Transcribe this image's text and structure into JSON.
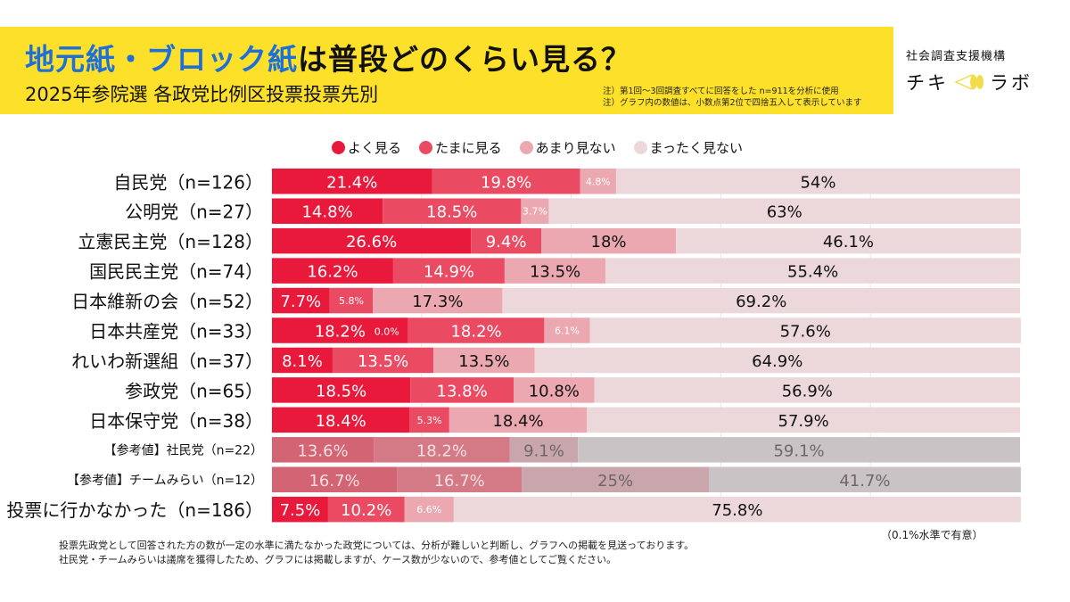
{
  "header": {
    "title_highlight": "地元紙・ブロック紙",
    "title_rest": "は普段どのくらい見る？",
    "subtitle": "2025年参院選 各政党比例区投票投票先別",
    "notes": [
      "注）第1回〜3回調査すべてに回答をした n=911を分析に使用",
      "注）グラフ内の数値は、小数点第2位で四捨五入して表示しています"
    ],
    "brand_org": "社会調査支援機構",
    "brand_name_left": "チキ",
    "brand_name_right": "ラボ"
  },
  "colors": {
    "header_bg": "#fde02a",
    "title_highlight": "#1f6fd8",
    "often": "#e8193a",
    "sometimes": "#ea4b62",
    "rarely": "#eba8b1",
    "never": "#ecd8db",
    "ref_often": "#d26474",
    "ref_sometimes": "#d47a87",
    "ref_rarely": "#c9a6ac",
    "ref_never": "#cac3c5"
  },
  "chart_data": {
    "type": "bar",
    "orientation": "horizontal",
    "stacked": true,
    "normalized_percent": true,
    "title": "地元紙・ブロック紙は普段どのくらい見る？",
    "subtitle": "2025年参院選 各政党比例区投票投票先別",
    "xlim": [
      0,
      100
    ],
    "grid": true,
    "legend_position": "top",
    "categories": [
      "自民党（n=126）",
      "公明党（n=27）",
      "立憲民主党（n=128）",
      "国民民主党（n=74）",
      "日本維新の会（n=52）",
      "日本共産党（n=33）",
      "れいわ新選組（n=37）",
      "参政党（n=65）",
      "日本保守党（n=38）",
      "【参考値】社民党（n=22）",
      "【参考値】チームみらい（n=12）",
      "投票に行かなかった（n=186）"
    ],
    "reference_rows": [
      false,
      false,
      false,
      false,
      false,
      false,
      false,
      false,
      false,
      true,
      true,
      false
    ],
    "series": [
      {
        "name": "よく見る",
        "values": [
          21.4,
          14.8,
          26.6,
          16.2,
          7.7,
          18.2,
          8.1,
          18.5,
          18.4,
          13.6,
          16.7,
          7.5
        ],
        "labels": [
          "21.4%",
          "14.8%",
          "26.6%",
          "16.2%",
          "7.7%",
          "18.2%",
          "8.1%",
          "18.5%",
          "18.4%",
          "13.6%",
          "16.7%",
          "7.5%"
        ]
      },
      {
        "name": "たまに見る",
        "values": [
          19.8,
          18.5,
          9.4,
          14.9,
          5.8,
          18.2,
          13.5,
          13.8,
          5.3,
          18.2,
          16.7,
          10.2
        ],
        "labels": [
          "19.8%",
          "18.5%",
          "9.4%",
          "14.9%",
          "5.8%",
          "18.2%",
          "13.5%",
          "13.8%",
          "5.3%",
          "18.2%",
          "16.7%",
          "10.2%"
        ]
      },
      {
        "name": "あまり見ない",
        "values": [
          4.8,
          3.7,
          18,
          13.5,
          17.3,
          6.1,
          13.5,
          10.8,
          18.4,
          9.1,
          25,
          6.6
        ],
        "labels": [
          "4.8%",
          "3.7%",
          "18%",
          "13.5%",
          "17.3%",
          "6.1%",
          "13.5%",
          "10.8%",
          "18.4%",
          "9.1%",
          "25%",
          "6.6%"
        ]
      },
      {
        "name": "まったく見ない",
        "values": [
          54,
          63,
          46.1,
          55.4,
          69.2,
          57.6,
          64.9,
          56.9,
          57.9,
          59.1,
          41.7,
          75.8
        ],
        "labels": [
          "54%",
          "63%",
          "46.1%",
          "55.4%",
          "69.2%",
          "57.6%",
          "64.9%",
          "56.9%",
          "57.9%",
          "59.1%",
          "41.7%",
          "75.8%"
        ]
      }
    ],
    "annotations": [
      "0.0%"
    ]
  },
  "footer": {
    "significance": "（0.1%水準で有意）",
    "lines": [
      "投票先政党として回答された方の数が一定の水準に満たなかった政党については、分析が難しいと判断し、グラフへの掲載を見送っております。",
      "社民党・チームみらいは議席を獲得したため、グラフには掲載しますが、ケース数が少ないので、参考値としてご覧ください。"
    ]
  }
}
